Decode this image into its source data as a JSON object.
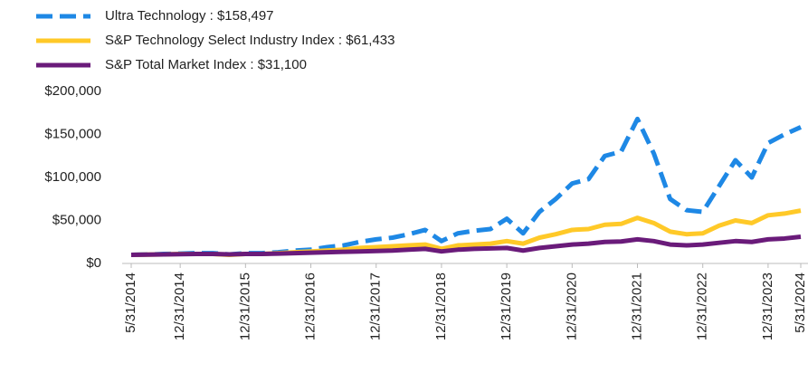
{
  "chart_data": {
    "type": "line",
    "categories": [
      "5/31/2014",
      null,
      null,
      "12/31/2014",
      null,
      null,
      null,
      "12/31/2015",
      null,
      null,
      null,
      "12/31/2016",
      null,
      null,
      null,
      "12/31/2017",
      null,
      null,
      null,
      "12/31/2018",
      null,
      null,
      null,
      "12/31/2019",
      null,
      null,
      null,
      "12/31/2020",
      null,
      null,
      null,
      "12/31/2021",
      null,
      null,
      null,
      "12/31/2022",
      null,
      null,
      null,
      "12/31/2023",
      null,
      "5/31/2024"
    ],
    "series": [
      {
        "name": "Ultra Technology : $158,497",
        "color": "#1e88e5",
        "line_style": "dashed",
        "values": [
          10000,
          10500,
          11000,
          11500,
          12000,
          12000,
          10500,
          12000,
          12000,
          13000,
          15000,
          16000,
          19000,
          21000,
          25000,
          28000,
          30000,
          34000,
          39000,
          26000,
          35000,
          38000,
          40000,
          52000,
          35000,
          60000,
          75000,
          93000,
          98000,
          125000,
          130000,
          168000,
          128000,
          75000,
          62000,
          60000,
          90000,
          120000,
          100000,
          140000,
          150000,
          158497
        ]
      },
      {
        "name": "S&P Technology Select Industry Index : $61,433",
        "color": "#ffc928",
        "line_style": "solid",
        "values": [
          10000,
          10300,
          10500,
          11000,
          11000,
          11000,
          10000,
          11000,
          11000,
          12000,
          13000,
          14000,
          15000,
          16000,
          18000,
          19000,
          20000,
          21000,
          22000,
          17000,
          21000,
          22000,
          23000,
          26000,
          23000,
          30000,
          34000,
          39000,
          40000,
          45000,
          46000,
          53000,
          47000,
          37000,
          34000,
          35000,
          44000,
          50000,
          47000,
          56000,
          58000,
          61433
        ]
      },
      {
        "name": "S&P Total Market Index : $31,100",
        "color": "#6a1b7a",
        "line_style": "solid",
        "values": [
          10000,
          10200,
          10500,
          10800,
          11000,
          11000,
          10500,
          11000,
          11000,
          11500,
          12000,
          12500,
          13000,
          13500,
          14000,
          14500,
          15000,
          16000,
          17000,
          14000,
          16000,
          17000,
          17500,
          18000,
          15000,
          18000,
          20000,
          22000,
          23000,
          25000,
          25500,
          28000,
          26000,
          22000,
          21000,
          22000,
          24000,
          26000,
          25000,
          28000,
          29000,
          31100
        ]
      }
    ],
    "ylim": [
      0,
      200000
    ],
    "yticks": [
      {
        "value": 0,
        "label": "$0"
      },
      {
        "value": 50000,
        "label": "$50,000"
      },
      {
        "value": 100000,
        "label": "$100,000"
      },
      {
        "value": 150000,
        "label": "$150,000"
      },
      {
        "value": 200000,
        "label": "$200,000"
      }
    ],
    "grid": false,
    "legend": "top-left"
  }
}
